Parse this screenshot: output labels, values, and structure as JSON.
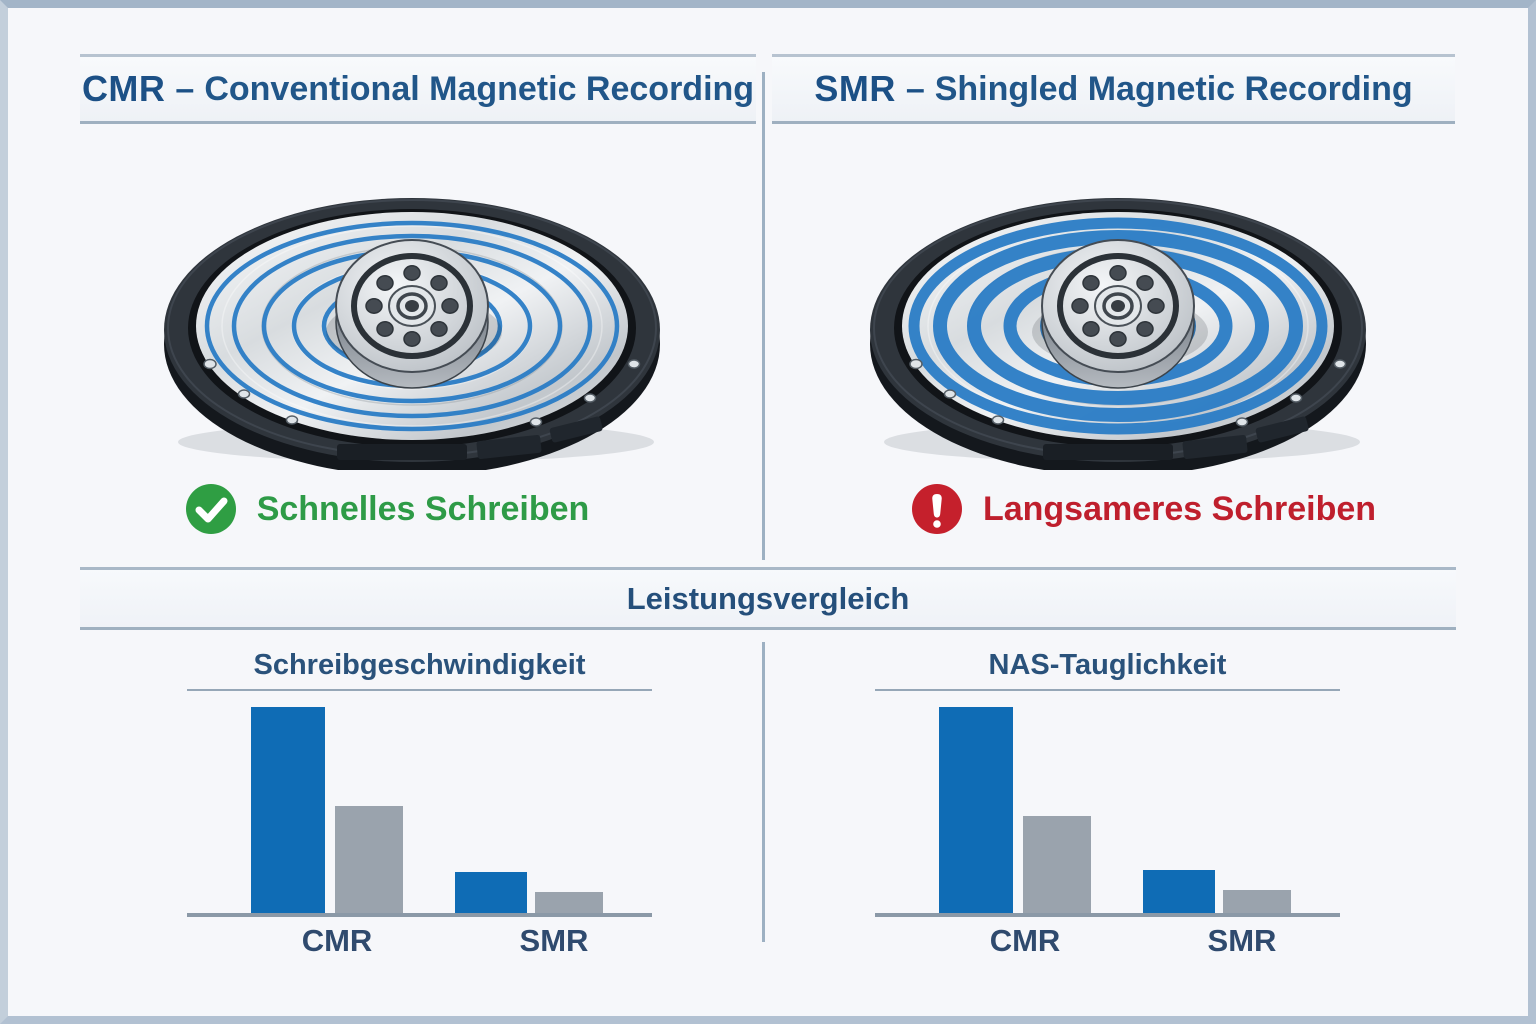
{
  "page": {
    "background": "#f6f7fa",
    "frame_color": "#b2c1d2",
    "accent_navy": "#1c5086",
    "divider_color": "#9db0c2"
  },
  "header": {
    "cmr": {
      "abbr": "CMR",
      "separator": "–",
      "name": "Conventional Magnetic Recording"
    },
    "smr": {
      "abbr": "SMR",
      "separator": "–",
      "name": "Shingled Magnetic Recording"
    }
  },
  "panels": {
    "cmr": {
      "illustration": "hdd-platter-with-separate-parallel-tracks",
      "track_color": "#2b7dc6",
      "status": {
        "icon": "check-circle-icon",
        "icon_color": "#2f9e43",
        "label": "Schnelles Schreiben",
        "label_color": "#2e9b47"
      }
    },
    "smr": {
      "illustration": "hdd-platter-with-overlapping-shingled-tracks",
      "track_color": "#2b7dc6",
      "status": {
        "icon": "alert-circle-icon",
        "icon_color": "#c5202c",
        "label": "Langsameres Schreiben",
        "label_color": "#bf1f2d"
      }
    }
  },
  "comparison": {
    "title": "Leistungsvergleich"
  },
  "chart_data": [
    {
      "type": "bar",
      "title": "Schreibgeschwindigkeit",
      "categories": [
        "CMR",
        "SMR"
      ],
      "series": [
        {
          "name": "blue-bar",
          "color": "#0f6cb5",
          "values": [
            100,
            20
          ]
        },
        {
          "name": "gray-bar",
          "color": "#9aa3ad",
          "values": [
            52,
            10
          ]
        }
      ],
      "xlabel": "",
      "ylabel": "",
      "ylim": [
        0,
        100
      ],
      "grid": false,
      "legend": "none"
    },
    {
      "type": "bar",
      "title": "NAS-Tauglichkeit",
      "categories": [
        "CMR",
        "SMR"
      ],
      "series": [
        {
          "name": "blue-bar",
          "color": "#0f6cb5",
          "values": [
            100,
            21
          ]
        },
        {
          "name": "gray-bar",
          "color": "#9aa3ad",
          "values": [
            47,
            11
          ]
        }
      ],
      "xlabel": "",
      "ylabel": "",
      "ylim": [
        0,
        100
      ],
      "grid": false,
      "legend": "none"
    }
  ]
}
